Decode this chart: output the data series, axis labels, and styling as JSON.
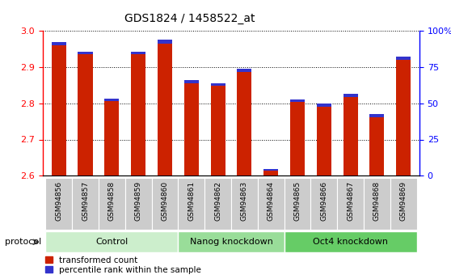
{
  "title": "GDS1824 / 1458522_at",
  "samples": [
    "GSM94856",
    "GSM94857",
    "GSM94858",
    "GSM94859",
    "GSM94860",
    "GSM94861",
    "GSM94862",
    "GSM94863",
    "GSM94864",
    "GSM94865",
    "GSM94866",
    "GSM94867",
    "GSM94868",
    "GSM94869"
  ],
  "transformed_count": [
    2.96,
    2.935,
    2.805,
    2.935,
    2.965,
    2.855,
    2.848,
    2.886,
    2.615,
    2.803,
    2.791,
    2.818,
    2.762,
    2.92
  ],
  "percentile_blue_height": [
    0.008,
    0.008,
    0.008,
    0.008,
    0.01,
    0.008,
    0.008,
    0.008,
    0.004,
    0.008,
    0.008,
    0.008,
    0.008,
    0.008
  ],
  "ylim_left": [
    2.6,
    3.0
  ],
  "ylim_right": [
    0,
    100
  ],
  "yticks_left": [
    2.6,
    2.7,
    2.8,
    2.9,
    3.0
  ],
  "yticks_right": [
    0,
    25,
    50,
    75,
    100
  ],
  "ytick_labels_right": [
    "0",
    "25",
    "50",
    "75",
    "100%"
  ],
  "bar_color_red": "#cc2200",
  "bar_color_blue": "#3333cc",
  "groups": [
    {
      "label": "Control",
      "start": 0,
      "end": 5,
      "color": "#cceecc"
    },
    {
      "label": "Nanog knockdown",
      "start": 5,
      "end": 9,
      "color": "#99dd99"
    },
    {
      "label": "Oct4 knockdown",
      "start": 9,
      "end": 14,
      "color": "#66cc66"
    }
  ],
  "protocol_label": "protocol",
  "legend": [
    "transformed count",
    "percentile rank within the sample"
  ],
  "bar_width": 0.55,
  "base_value": 2.6,
  "tick_bg_color": "#cccccc",
  "fig_bg": "#ffffff"
}
